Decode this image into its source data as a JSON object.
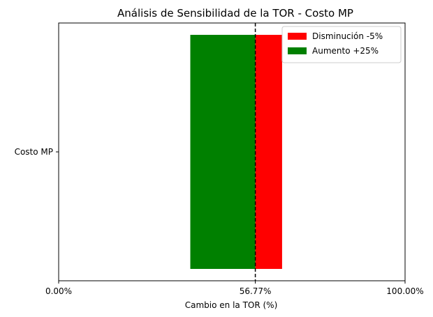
{
  "chart_data": {
    "type": "bar",
    "orientation": "horizontal",
    "title": "Análisis de Sensibilidad de la TOR - Costo MP",
    "xlabel": "Cambio en la TOR (%)",
    "ylabel": "",
    "categories": [
      "Costo MP"
    ],
    "xlim": [
      0,
      100
    ],
    "xticks": [
      {
        "value": 0,
        "label": "0.00%"
      },
      {
        "value": 56.77,
        "label": "56.77%"
      },
      {
        "value": 100,
        "label": "100.00%"
      }
    ],
    "baseline": 56.77,
    "baseline_style": "dashed",
    "series": [
      {
        "name": "Disminución -5%",
        "color": "#ff0000",
        "range": [
          56.77,
          64.5
        ]
      },
      {
        "name": "Aumento +25%",
        "color": "#008000",
        "range": [
          38.0,
          56.77
        ]
      }
    ],
    "legend": "top-right",
    "grid": false
  }
}
